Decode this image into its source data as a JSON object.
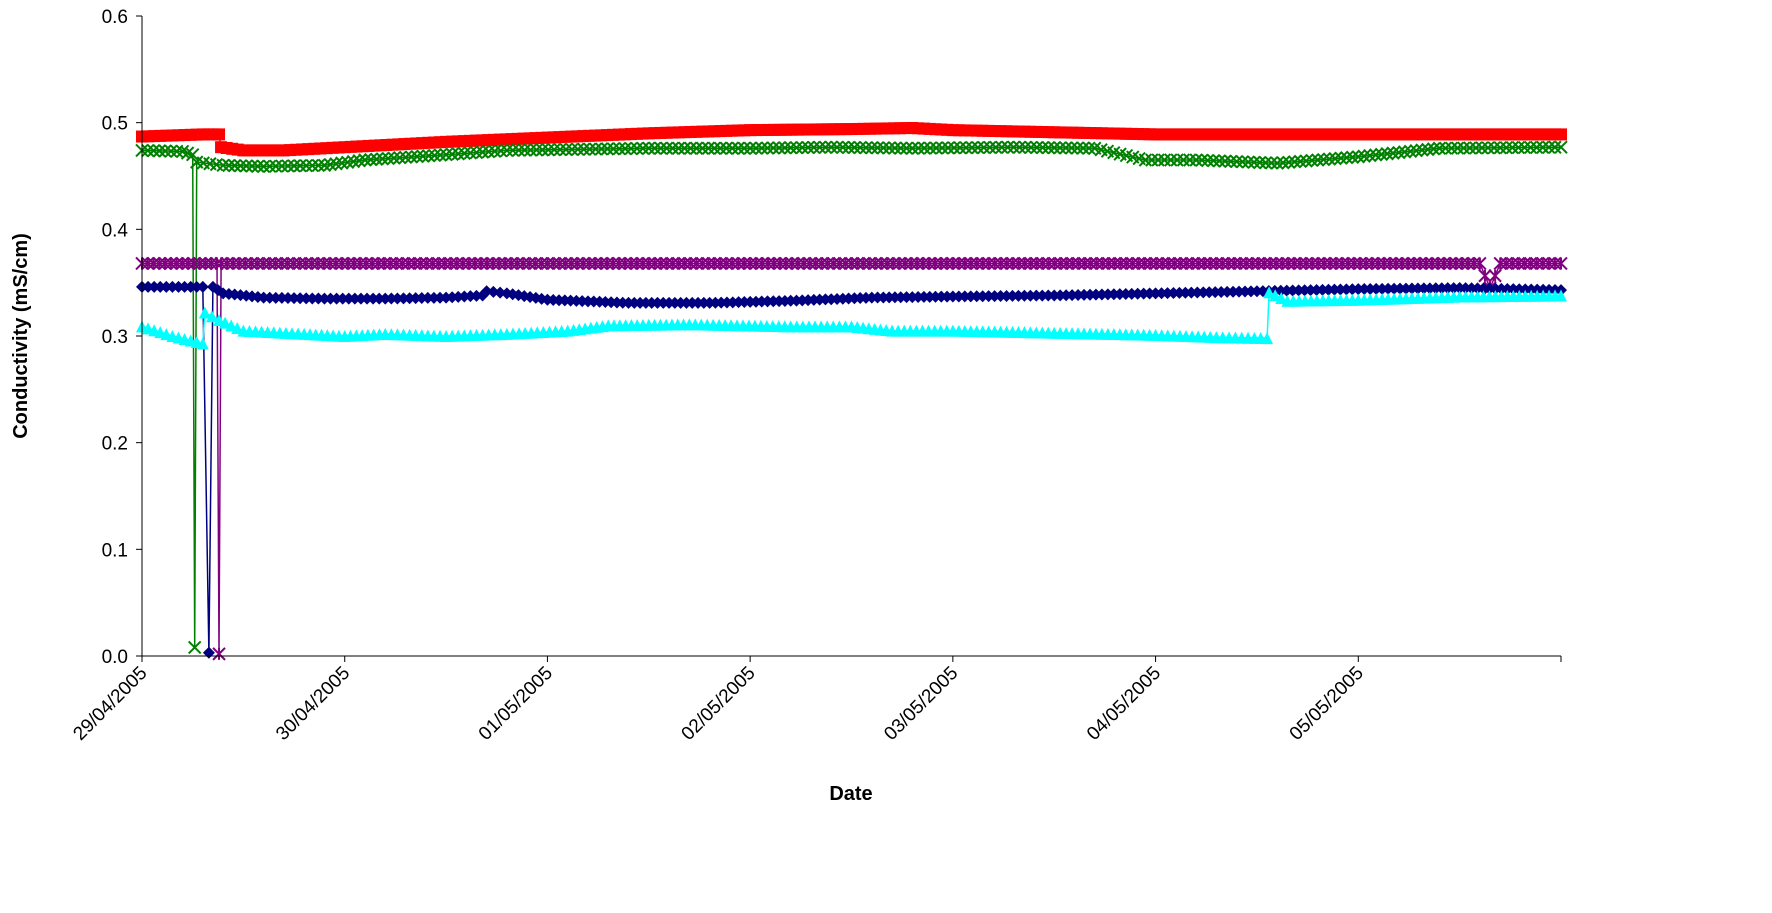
{
  "chart_data": {
    "type": "line",
    "title": "",
    "xlabel": "Date",
    "ylabel": "Conductivity (mS/cm)",
    "x_tick_labels": [
      "29/04/2005",
      "30/04/2005",
      "01/05/2005",
      "02/05/2005",
      "03/05/2005",
      "04/05/2005",
      "05/05/2005"
    ],
    "y_tick_labels": [
      "0.0",
      "0.1",
      "0.2",
      "0.3",
      "0.4",
      "0.5",
      "0.6"
    ],
    "xlim": [
      0,
      7.0
    ],
    "ylim": [
      0,
      0.6
    ],
    "grid": false,
    "legend": "none",
    "series": [
      {
        "color": "#ff0000",
        "marker": "square",
        "points": [
          [
            0.0,
            0.487
          ],
          [
            0.3,
            0.489
          ],
          [
            0.38,
            0.489
          ],
          [
            0.39,
            0.477
          ],
          [
            0.5,
            0.474
          ],
          [
            0.7,
            0.474
          ],
          [
            1.0,
            0.477
          ],
          [
            1.5,
            0.482
          ],
          [
            2.0,
            0.486
          ],
          [
            2.5,
            0.49
          ],
          [
            3.0,
            0.493
          ],
          [
            3.5,
            0.494
          ],
          [
            3.8,
            0.495
          ],
          [
            4.0,
            0.493
          ],
          [
            4.5,
            0.491
          ],
          [
            5.0,
            0.489
          ],
          [
            5.5,
            0.489
          ],
          [
            6.0,
            0.489
          ],
          [
            6.5,
            0.489
          ],
          [
            7.0,
            0.489
          ]
        ]
      },
      {
        "color": "#008000",
        "marker": "x",
        "points": [
          [
            0.0,
            0.474
          ],
          [
            0.2,
            0.473
          ],
          [
            0.25,
            0.47
          ],
          [
            0.26,
            0.008
          ],
          [
            0.27,
            0.463
          ],
          [
            0.4,
            0.46
          ],
          [
            0.6,
            0.459
          ],
          [
            0.9,
            0.46
          ],
          [
            1.1,
            0.465
          ],
          [
            1.5,
            0.47
          ],
          [
            1.8,
            0.474
          ],
          [
            2.5,
            0.476
          ],
          [
            3.0,
            0.476
          ],
          [
            3.4,
            0.477
          ],
          [
            3.8,
            0.476
          ],
          [
            4.3,
            0.477
          ],
          [
            4.7,
            0.476
          ],
          [
            4.95,
            0.465
          ],
          [
            5.2,
            0.465
          ],
          [
            5.6,
            0.462
          ],
          [
            6.0,
            0.468
          ],
          [
            6.4,
            0.476
          ],
          [
            7.0,
            0.477
          ]
        ]
      },
      {
        "color": "#800080",
        "marker": "asterisk",
        "points": [
          [
            0.0,
            0.368
          ],
          [
            0.37,
            0.368
          ],
          [
            0.38,
            0.002
          ],
          [
            0.39,
            0.368
          ],
          [
            2.0,
            0.368
          ],
          [
            4.0,
            0.368
          ],
          [
            6.6,
            0.368
          ],
          [
            6.65,
            0.345
          ],
          [
            6.7,
            0.368
          ],
          [
            7.0,
            0.368
          ]
        ]
      },
      {
        "color": "#000080",
        "marker": "diamond",
        "points": [
          [
            0.0,
            0.346
          ],
          [
            0.3,
            0.346
          ],
          [
            0.33,
            0.003
          ],
          [
            0.35,
            0.346
          ],
          [
            0.4,
            0.34
          ],
          [
            0.6,
            0.336
          ],
          [
            0.9,
            0.335
          ],
          [
            1.2,
            0.335
          ],
          [
            1.5,
            0.336
          ],
          [
            1.68,
            0.338
          ],
          [
            1.7,
            0.342
          ],
          [
            1.8,
            0.34
          ],
          [
            2.0,
            0.334
          ],
          [
            2.4,
            0.331
          ],
          [
            2.8,
            0.331
          ],
          [
            3.2,
            0.333
          ],
          [
            3.6,
            0.336
          ],
          [
            4.0,
            0.337
          ],
          [
            4.5,
            0.338
          ],
          [
            5.0,
            0.34
          ],
          [
            5.5,
            0.342
          ],
          [
            6.0,
            0.344
          ],
          [
            6.5,
            0.345
          ],
          [
            7.0,
            0.343
          ]
        ]
      },
      {
        "color": "#00ffff",
        "marker": "triangle",
        "points": [
          [
            0.0,
            0.309
          ],
          [
            0.15,
            0.3
          ],
          [
            0.3,
            0.293
          ],
          [
            0.31,
            0.322
          ],
          [
            0.38,
            0.315
          ],
          [
            0.5,
            0.305
          ],
          [
            0.8,
            0.302
          ],
          [
            1.0,
            0.3
          ],
          [
            1.2,
            0.302
          ],
          [
            1.5,
            0.3
          ],
          [
            1.8,
            0.302
          ],
          [
            2.1,
            0.305
          ],
          [
            2.3,
            0.31
          ],
          [
            2.7,
            0.311
          ],
          [
            3.2,
            0.309
          ],
          [
            3.5,
            0.309
          ],
          [
            3.7,
            0.305
          ],
          [
            4.0,
            0.305
          ],
          [
            4.5,
            0.303
          ],
          [
            5.0,
            0.301
          ],
          [
            5.3,
            0.299
          ],
          [
            5.55,
            0.298
          ],
          [
            5.56,
            0.341
          ],
          [
            5.65,
            0.333
          ],
          [
            6.0,
            0.334
          ],
          [
            6.5,
            0.337
          ],
          [
            7.0,
            0.338
          ]
        ]
      }
    ]
  }
}
